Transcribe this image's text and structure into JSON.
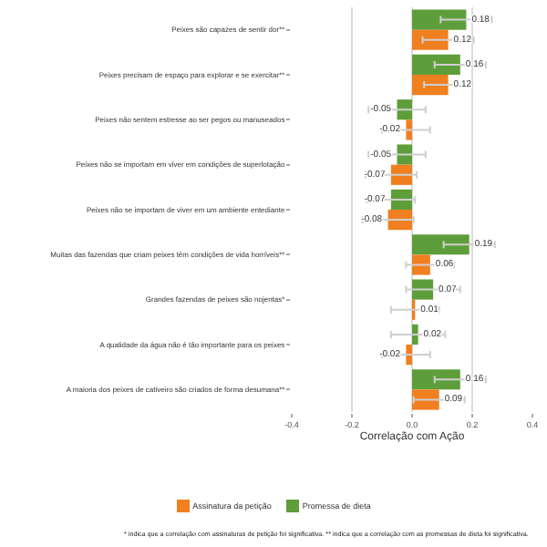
{
  "chart_data": {
    "type": "bar",
    "orientation": "horizontal",
    "xlabel": "Correlação com Ação",
    "categories": [
      "Peixes são capazes de sentir dor**",
      "Peixes precisam de espaço para explorar e se exercitar**",
      "Peixes não sentem estresse ao ser pegos ou manuseados",
      "Peixes não se importam em viver em condições de superlotação",
      "Peixes não se importam de viver em um ambiente entediante",
      "Muitas das fazendas que criam peixes têm condições de vida horríveis**",
      "Grandes fazendas de peixes são nojentas*",
      "A qualidade da água não é tão importante para os peixes",
      "A maioria dos peixes de cativeiro são criados de forma desumana**"
    ],
    "series": [
      {
        "name": "Assinatura da petição",
        "color": "#f07f1f",
        "values": [
          0.12,
          0.12,
          -0.02,
          -0.07,
          -0.08,
          0.06,
          0.01,
          -0.02,
          0.09
        ],
        "errors": [
          0.085,
          0.08,
          0.08,
          0.085,
          0.085,
          0.08,
          0.08,
          0.08,
          0.085
        ]
      },
      {
        "name": "Promessa de dieta",
        "color": "#5e9e3a",
        "values": [
          0.18,
          0.16,
          -0.05,
          -0.05,
          -0.07,
          0.19,
          0.07,
          0.02,
          0.16
        ],
        "errors": [
          0.085,
          0.085,
          0.095,
          0.095,
          0.08,
          0.085,
          0.09,
          0.09,
          0.085
        ]
      }
    ],
    "xlim": [
      -0.4,
      0.4
    ],
    "xticks": [
      -0.4,
      -0.2,
      {
        "value": 0,
        "label": "0.0"
      },
      0.2,
      0.4
    ],
    "grid": "x",
    "legend": "bottom",
    "data_labels": true,
    "annotations": [
      "* indica que a correlação com assinaturas de petição foi significativa. ** indica que a correlação com as promessas de dieta foi significativa."
    ]
  }
}
